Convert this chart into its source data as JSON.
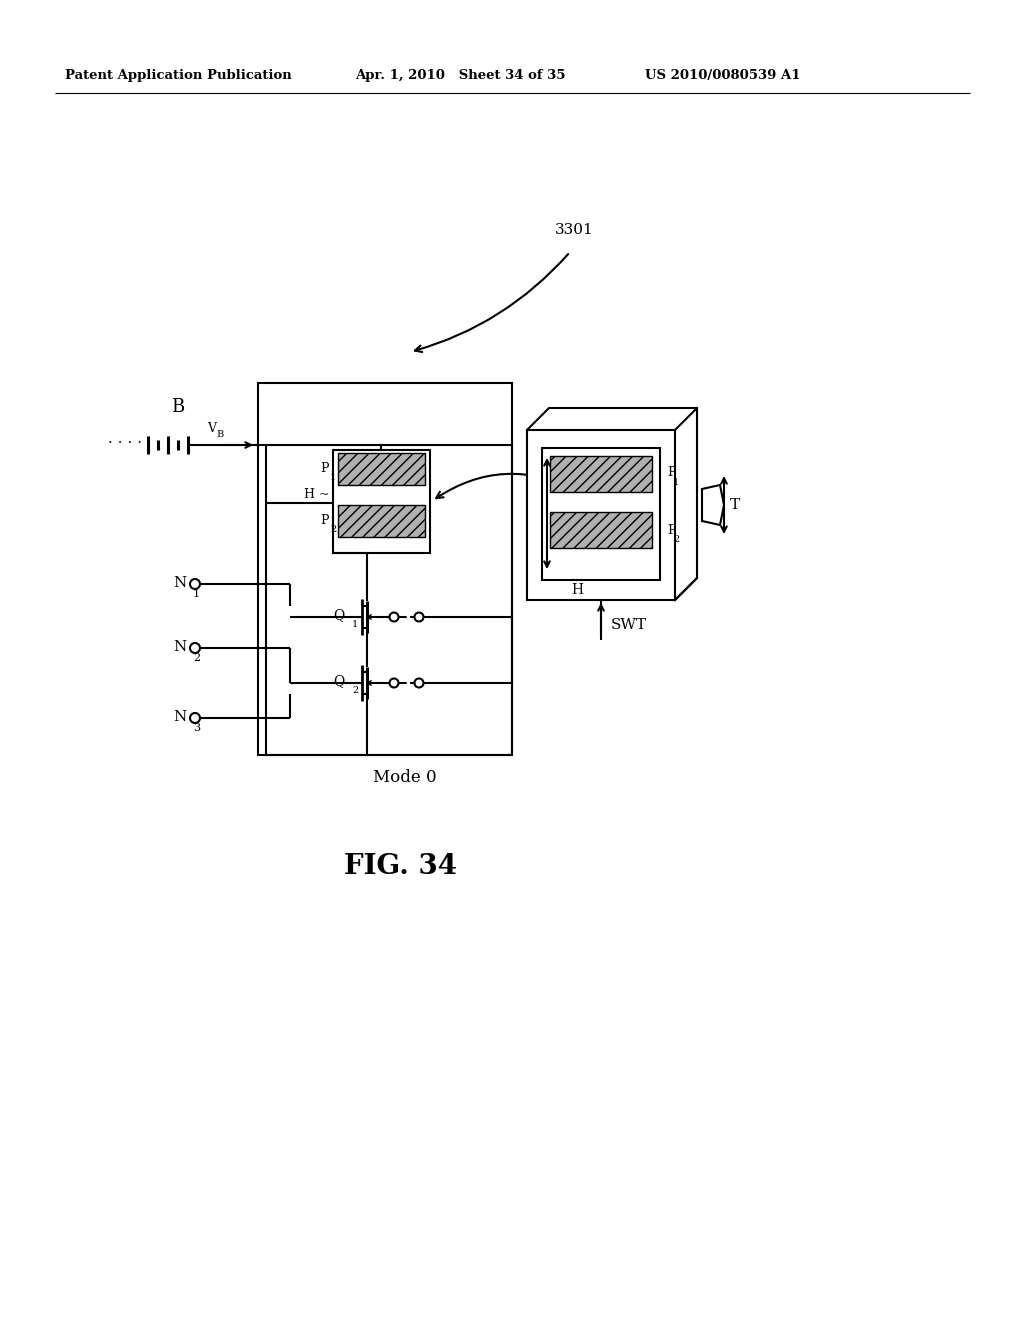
{
  "bg_color": "#ffffff",
  "line_color": "#000000",
  "header_left": "Patent Application Publication",
  "header_mid": "Apr. 1, 2010   Sheet 34 of 35",
  "header_right": "US 2010/0080539 A1",
  "fig_label": "FIG. 34",
  "mode_label": "Mode 0",
  "ref_label": "3301",
  "battery_label": "B",
  "vb_label": "V",
  "vb_sub": "B",
  "SWT_label": "SWT",
  "T_label": "T",
  "H_label": "H",
  "P1_label": "P",
  "P1_sub": "1",
  "P2_label": "P",
  "P2_sub": "2",
  "Q1_label": "Q",
  "Q1_sub": "1",
  "Q2_label": "Q",
  "Q2_sub": "2",
  "N1_label": "N",
  "N1_sub": "1",
  "N2_label": "N",
  "N2_sub": "2",
  "N3_label": "N",
  "N3_sub": "3"
}
